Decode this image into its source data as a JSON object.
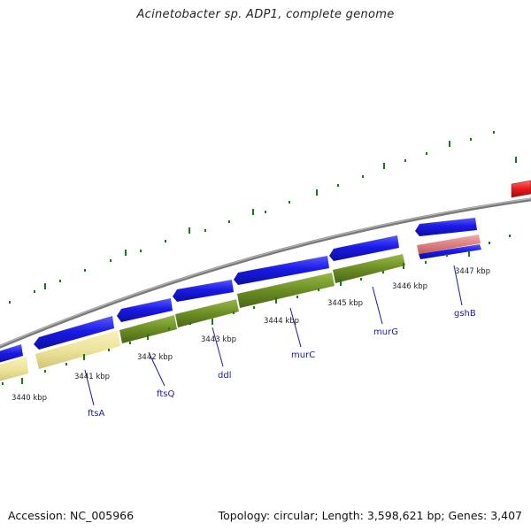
{
  "title": "Acinetobacter sp. ADP1, complete genome",
  "footer": {
    "accession": "Accession: NC_005966",
    "summary": "Topology: circular; Length: 3,598,621 bp; Genes: 3,407"
  },
  "colors": {
    "backbone": "#8a8a8a",
    "gene_blue": "#1a1ae6",
    "gene_green": "#6b8e23",
    "gene_yellow": "#ede49a",
    "gene_red": "#e61a1a",
    "gene_pink": "#e07a7a",
    "tick_green": "#1a7a1a",
    "label_blue": "#1a1aa0",
    "label_black": "#222222"
  },
  "scale_labels": [
    "3440 kbp",
    "3441 kbp",
    "3442 kbp",
    "3443 kbp",
    "3444 kbp",
    "3445 kbp",
    "3446 kbp",
    "3447 kbp"
  ],
  "gene_labels": [
    "ftsA",
    "ftsQ",
    "ddl",
    "murC",
    "murG",
    "gshB"
  ]
}
